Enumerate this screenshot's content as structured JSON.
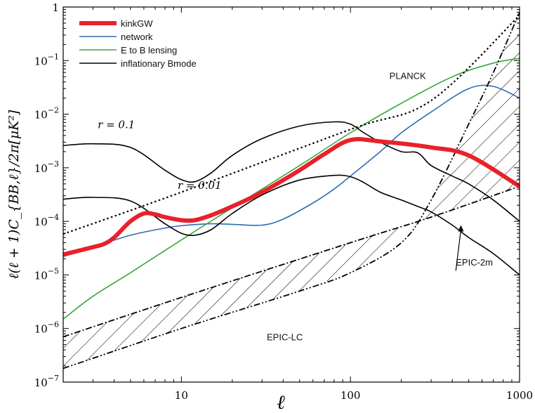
{
  "chart_data": {
    "type": "line",
    "xscale": "log",
    "yscale": "log",
    "xlim": [
      2,
      1000
    ],
    "ylim": [
      1e-07,
      1
    ],
    "xlabel": "ℓ",
    "ylabel": "ℓ(ℓ + 1)C_{BB,ℓ}/2π[μK²]",
    "x_ticks": [
      10,
      100,
      1000
    ],
    "x_tick_labels": [
      "10",
      "100",
      "1000"
    ],
    "y_ticks": [
      1e-07,
      1e-06,
      1e-05,
      0.0001,
      0.001,
      0.01,
      0.1,
      1
    ],
    "y_tick_labels": [
      {
        "base": "10",
        "exp": "−7"
      },
      {
        "base": "10",
        "exp": "−6"
      },
      {
        "base": "10",
        "exp": "−5"
      },
      {
        "base": "10",
        "exp": "−4"
      },
      {
        "base": "10",
        "exp": "−3"
      },
      {
        "base": "10",
        "exp": "−2"
      },
      {
        "base": "10",
        "exp": "−1"
      },
      {
        "base": "1",
        "exp": ""
      }
    ],
    "legend_position": "top-left",
    "series": [
      {
        "name": "kinkGW",
        "color": "#e8212a",
        "style": "thick",
        "legend": true,
        "x": [
          2,
          3,
          3.5,
          4,
          5,
          6,
          7,
          8,
          10,
          12,
          15,
          20,
          30,
          50,
          70,
          100,
          150,
          300,
          500,
          1000
        ],
        "y": [
          2.4e-05,
          3.3e-05,
          3.8e-05,
          5e-05,
          0.0001,
          0.00014,
          0.000135,
          0.00012,
          0.000105,
          0.000105,
          0.00013,
          0.00019,
          0.00035,
          0.0009,
          0.0018,
          0.0033,
          0.0031,
          0.0024,
          0.0017,
          0.00045
        ]
      },
      {
        "name": "network",
        "color": "#2e6db4",
        "style": "solid",
        "legend": true,
        "x": [
          2,
          3,
          5,
          8,
          10,
          15,
          20,
          30,
          40,
          60,
          80,
          100,
          150,
          200,
          300,
          500,
          700,
          1000
        ],
        "y": [
          2.2e-05,
          3.3e-05,
          5.5e-05,
          7.5e-05,
          8.3e-05,
          9e-05,
          8.8e-05,
          8.5e-05,
          0.00011,
          0.00022,
          0.0004,
          0.0007,
          0.002,
          0.0045,
          0.011,
          0.03,
          0.033,
          0.02
        ]
      },
      {
        "name": "E to B lensing",
        "color": "#3aa63a",
        "style": "solid",
        "legend": true,
        "x": [
          2,
          3,
          5,
          10,
          20,
          50,
          100,
          200,
          400,
          700,
          1000
        ],
        "y": [
          1.5e-06,
          4e-06,
          1.1e-05,
          4.5e-05,
          0.00018,
          0.0011,
          0.0045,
          0.016,
          0.05,
          0.09,
          0.11
        ]
      },
      {
        "name": "inflationary Bmode",
        "color": "#000000",
        "style": "solid",
        "legend": true,
        "x": [
          2,
          3,
          5,
          8,
          10,
          12,
          15,
          20,
          30,
          50,
          80,
          100,
          120,
          150,
          200,
          250,
          300,
          400,
          500,
          700,
          1000
        ],
        "y": [
          0.0026,
          0.0028,
          0.0024,
          0.0009,
          0.0006,
          0.00055,
          0.0008,
          0.0017,
          0.0035,
          0.006,
          0.0072,
          0.0065,
          0.0045,
          0.003,
          0.002,
          0.0019,
          0.0011,
          0.0007,
          0.0005,
          0.00025,
          0.0001
        ]
      },
      {
        "name": "inflationary Bmode r=0.01",
        "color": "#000000",
        "style": "solid",
        "legend": false,
        "x": [
          2,
          3,
          5,
          8,
          10,
          12,
          15,
          20,
          30,
          50,
          80,
          100,
          120,
          150,
          200,
          250,
          300,
          400,
          500,
          700,
          1000
        ],
        "y": [
          0.00026,
          0.00028,
          0.00024,
          9e-05,
          6e-05,
          5.5e-05,
          7e-05,
          0.00014,
          0.00031,
          0.00059,
          0.00072,
          0.00068,
          0.00053,
          0.00035,
          0.00025,
          0.00019,
          0.00015,
          8.5e-05,
          5e-05,
          2.5e-05,
          1e-05
        ]
      },
      {
        "name": "PLANCK",
        "color": "#000000",
        "style": "dotted",
        "legend": false,
        "x": [
          2,
          10,
          100,
          300,
          1000
        ],
        "y": [
          5.8e-05,
          0.00035,
          0.0052,
          0.018,
          0.7
        ]
      },
      {
        "name": "EPIC-2m",
        "color": "#000000",
        "style": "dashdot",
        "legend": false,
        "x": [
          2,
          10,
          100,
          300,
          1000
        ],
        "y": [
          7e-07,
          3.8e-06,
          4e-05,
          0.00012,
          0.00045
        ]
      },
      {
        "name": "EPIC-LC",
        "color": "#000000",
        "style": "dashdotdot",
        "legend": false,
        "x": [
          2,
          10,
          50,
          100,
          200,
          300,
          500,
          700,
          1000
        ],
        "y": [
          1.8e-07,
          1e-06,
          5e-06,
          1.1e-05,
          4e-05,
          0.00025,
          0.0065,
          0.06,
          0.8
        ]
      }
    ],
    "bands": [
      {
        "name": "EPIC band",
        "upper": "EPIC-2m",
        "lower": "EPIC-LC",
        "x": [
          2,
          10,
          50,
          100,
          200,
          300,
          500,
          700,
          1000
        ],
        "hatch": "diagonal"
      }
    ],
    "annotations": [
      {
        "text": "r = 0.1",
        "x": 3.2,
        "y": 0.0055,
        "font": "math"
      },
      {
        "text": "r = 0.01",
        "x": 9.5,
        "y": 0.0004,
        "font": "math"
      },
      {
        "text": "PLANCK",
        "x": 170,
        "y": 0.045,
        "font": "sans"
      },
      {
        "text": "EPIC-2m",
        "x": 420,
        "y": 1.5e-05,
        "font": "sans"
      },
      {
        "text": "EPIC-LC",
        "x": 32,
        "y": 6e-07,
        "font": "sans"
      }
    ],
    "arrow": {
      "from": [
        420,
        1.2e-05
      ],
      "to": [
        450,
        8.5e-05
      ]
    }
  }
}
